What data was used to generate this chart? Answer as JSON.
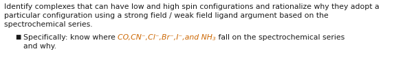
{
  "background_color": "#ffffff",
  "main_text_line1": "Identify complexes that can have low and high spin configurations and rationalize why they adopt a",
  "main_text_line2": "particular configuration using a strong field / weak field ligand argument based on the",
  "main_text_line3": "spectrochemical series.",
  "bullet_char": "■",
  "bullet_intro": "Specifically: know where ",
  "bullet_italic_part": "CO,CN⁻,Cl⁻,Br⁻,I⁻,and NH",
  "bullet_sub": "3",
  "bullet_end": " fall on the spectrochemical series",
  "bullet_line2": "and why.",
  "main_font_size": 7.8,
  "main_color": "#1a1a1a",
  "italic_color": "#cc6600",
  "figsize": [
    5.73,
    0.88
  ],
  "dpi": 100
}
